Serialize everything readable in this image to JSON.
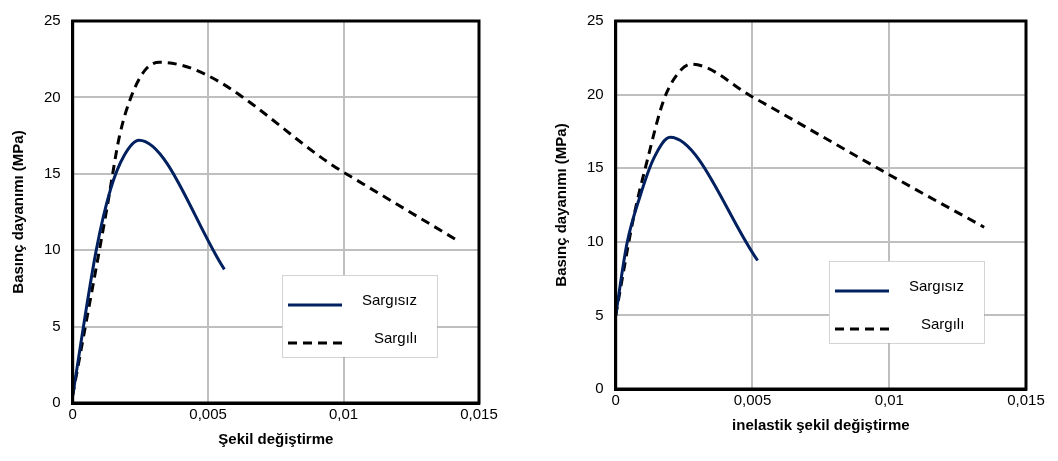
{
  "chart_data": [
    {
      "type": "line",
      "xlabel": "Şekil değiştirme",
      "ylabel": "Basınç dayanımı (MPa)",
      "xlim": [
        0,
        0.015
      ],
      "xticks": [
        0,
        {
          "value": 0.005,
          "label": "0,005"
        },
        {
          "value": 0.01,
          "label": "0,01"
        },
        {
          "value": 0.015,
          "label": "0,015"
        }
      ],
      "ylim": [
        0,
        25
      ],
      "yticks": [
        0,
        5,
        10,
        15,
        20,
        25
      ],
      "grid": true,
      "legend": "bottom right",
      "marker": "none",
      "series": [
        {
          "name": "Sargısız",
          "color": "#002060",
          "line_style": "solid",
          "x": [
            0,
            0.00088,
            0.0014,
            0.0019,
            0.00245,
            0.0056
          ],
          "values": [
            0.5,
            10.1,
            14.0,
            16.2,
            17.2,
            8.75
          ]
        },
        {
          "name": "Sargılı",
          "color": "#000000",
          "line_style": "dashed",
          "x": [
            0,
            0.00127,
            0.00172,
            0.00217,
            0.00268,
            0.0032,
            0.01,
            0.01424
          ],
          "values": [
            0.5,
            12.8,
            17.4,
            20.1,
            21.8,
            22.3,
            15.1,
            10.6
          ]
        }
      ]
    },
    {
      "type": "line",
      "xlabel": "inelastik şekil değiştirme",
      "ylabel": "Basınç dayanımı (MPa)",
      "xlim": [
        0,
        0.015
      ],
      "xticks": [
        0,
        {
          "value": 0.005,
          "label": "0,005"
        },
        {
          "value": 0.01,
          "label": "0,01"
        },
        {
          "value": 0.015,
          "label": "0,015"
        }
      ],
      "ylim": [
        0,
        25
      ],
      "yticks": [
        0,
        5,
        10,
        15,
        20,
        25
      ],
      "grid": true,
      "legend": "bottom right",
      "marker": "none",
      "series": [
        {
          "name": "Sargısız",
          "color": "#002060",
          "line_style": "solid",
          "x": [
            0,
            0.00041,
            0.0009,
            0.0014,
            0.00199,
            0.00519
          ],
          "values": [
            5,
            9.86,
            13.15,
            15.7,
            17.1,
            8.73
          ]
        },
        {
          "name": "Sargılı",
          "color": "#000000",
          "line_style": "dashed",
          "x": [
            0,
            0.00066,
            0.00115,
            0.00177,
            0.0024,
            0.00277,
            0.005,
            0.00996,
            0.01347
          ],
          "values": [
            5,
            11.7,
            15.5,
            19.7,
            21.7,
            22.07,
            19.84,
            14.6,
            10.99
          ]
        }
      ]
    }
  ]
}
